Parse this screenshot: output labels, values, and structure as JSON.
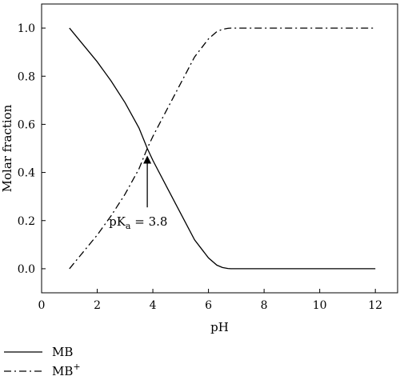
{
  "chart_data": {
    "type": "line",
    "xlabel": "pH",
    "ylabel": "Molar fraction",
    "xlim": [
      0,
      12.8
    ],
    "ylim": [
      -0.1,
      1.1
    ],
    "xticks": [
      "0",
      "2",
      "4",
      "6",
      "8",
      "10",
      "12"
    ],
    "yticks": [
      "0.0",
      "0.2",
      "0.4",
      "0.6",
      "0.8",
      "1.0"
    ],
    "grid": false,
    "legend_position": "bottom-left, below plot",
    "series": [
      {
        "name": "MB",
        "line_style": "solid",
        "color": "#000000",
        "x": [
          1.0,
          1.5,
          2.0,
          2.5,
          3.0,
          3.5,
          3.8,
          4.0,
          4.5,
          5.0,
          5.5,
          6.0,
          6.3,
          6.5,
          6.7,
          6.8,
          7.0,
          8.0,
          9.0,
          10.0,
          11.0,
          12.0
        ],
        "y": [
          1.0,
          0.93,
          0.86,
          0.78,
          0.69,
          0.585,
          0.5,
          0.45,
          0.34,
          0.23,
          0.12,
          0.045,
          0.015,
          0.005,
          0.001,
          0.0,
          0.0,
          0.0,
          0.0,
          0.0,
          0.0,
          0.0
        ]
      },
      {
        "name": "MB⁺",
        "line_style": "dash-dot",
        "color": "#000000",
        "x": [
          1.0,
          1.5,
          2.0,
          2.5,
          3.0,
          3.5,
          3.8,
          4.0,
          4.5,
          5.0,
          5.5,
          6.0,
          6.3,
          6.5,
          6.7,
          6.8,
          7.0,
          8.0,
          9.0,
          10.0,
          11.0,
          12.0
        ],
        "y": [
          0.0,
          0.07,
          0.14,
          0.22,
          0.31,
          0.415,
          0.5,
          0.55,
          0.66,
          0.77,
          0.88,
          0.955,
          0.985,
          0.995,
          0.999,
          1.0,
          1.0,
          1.0,
          1.0,
          1.0,
          1.0,
          1.0
        ]
      }
    ],
    "annotations": [
      {
        "text_main": "pK",
        "text_sub": "a",
        "text_rest": " = 3.8",
        "arrow_x": 3.8,
        "arrow_tip_y": 0.47,
        "arrow_tail_y": 0.255
      }
    ],
    "legend": [
      {
        "label_main": "MB",
        "label_sup": "",
        "line_style": "solid"
      },
      {
        "label_main": "MB",
        "label_sup": "+",
        "line_style": "dash-dot"
      }
    ]
  }
}
